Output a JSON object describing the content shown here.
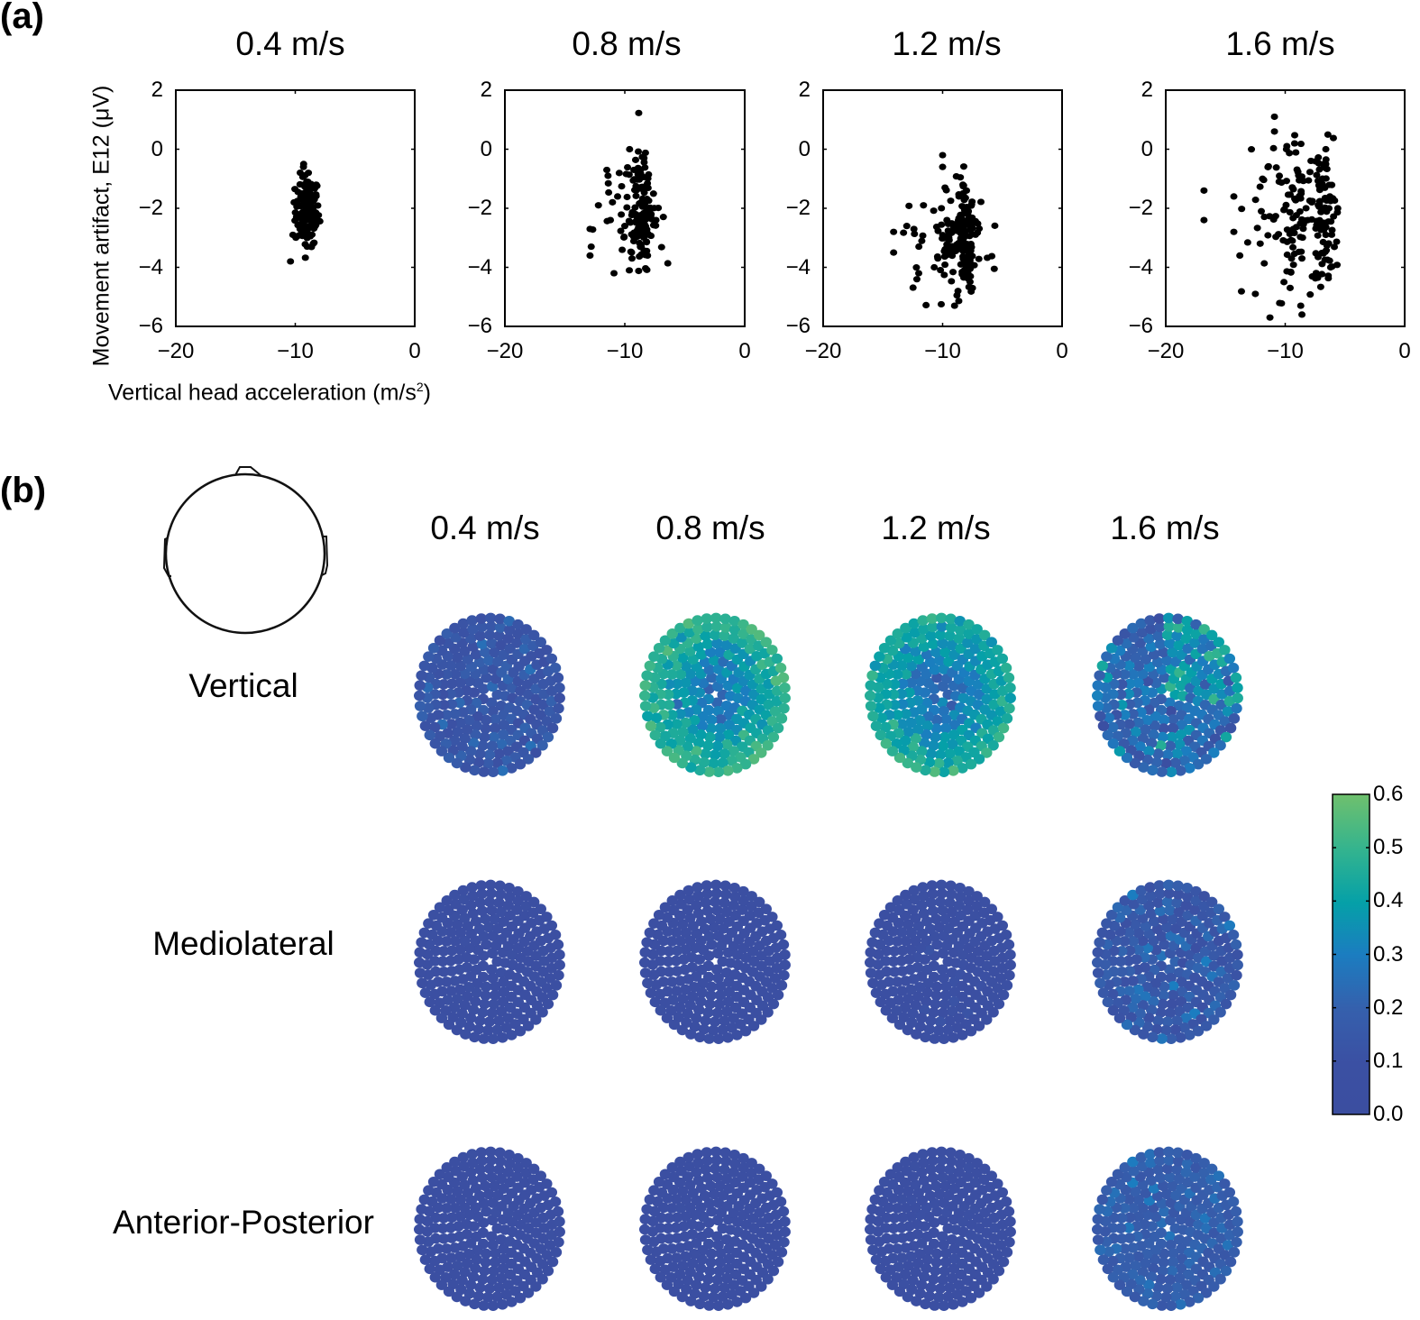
{
  "panel_a": {
    "label": "(a)",
    "ylabel": "Movement artifact, E12 (μV)",
    "xlabel_main": "Vertical head acceleration (m/s",
    "xlabel_sup": "2",
    "xlabel_end": ")"
  },
  "panel_b": {
    "label": "(b)",
    "column_titles": [
      "0.4 m/s",
      "0.8 m/s",
      "1.2 m/s",
      "1.6 m/s"
    ],
    "row_labels": [
      "Vertical",
      "Mediolateral",
      "Anterior-Posterior"
    ],
    "head_icon": "head-outline-icon",
    "colorbar": {
      "ticks": [
        "0.0",
        "0.1",
        "0.2",
        "0.3",
        "0.4",
        "0.5",
        "0.6"
      ],
      "min": 0.0,
      "max": 0.6
    }
  },
  "chart_data": [
    {
      "type": "scatter",
      "title": "0.4 m/s",
      "xlabel": "Vertical head acceleration (m/s²)",
      "ylabel": "Movement artifact, E12 (μV)",
      "xlim": [
        -20,
        0
      ],
      "ylim": [
        -6,
        2
      ],
      "xticks": [
        "−20",
        "−10",
        "0"
      ],
      "yticks": [
        "2",
        "0",
        "−2",
        "−4",
        "−6"
      ],
      "cluster": {
        "x_mean": -9.0,
        "x_sd": 0.5,
        "y_mean": -2.1,
        "y_sd": 0.6,
        "n": 120
      },
      "points": [
        [
          -9.3,
          -0.5
        ],
        [
          -8.9,
          -0.8
        ],
        [
          -9.0,
          -1.2
        ],
        [
          -10.1,
          -1.8
        ],
        [
          -10.2,
          -2.9
        ],
        [
          -10.4,
          -3.8
        ],
        [
          -9.9,
          -2.3
        ],
        [
          -8.4,
          -1.7
        ],
        [
          -8.3,
          -2.4
        ],
        [
          -8.5,
          -3.2
        ],
        [
          -9.0,
          -3.3
        ],
        [
          -9.1,
          -2.0
        ],
        [
          -8.8,
          -2.6
        ],
        [
          -9.5,
          -1.5
        ],
        [
          -8.7,
          -1.9
        ],
        [
          -9.6,
          -2.7
        ]
      ]
    },
    {
      "type": "scatter",
      "title": "0.8 m/s",
      "xlabel": "",
      "ylabel": "",
      "xlim": [
        -20,
        0
      ],
      "ylim": [
        -6,
        2
      ],
      "xticks": [
        "−20",
        "−10",
        "0"
      ],
      "yticks": [
        "2",
        "0",
        "−2",
        "−4",
        "−6"
      ],
      "cluster": {
        "x_mean": -9.2,
        "x_sd": 1.2,
        "y_mean": -2.2,
        "y_sd": 0.9,
        "n": 150
      },
      "points": [
        [
          -9.6,
          0.0
        ],
        [
          -8.4,
          -0.3
        ],
        [
          -11.5,
          -0.7
        ],
        [
          -11.4,
          -0.9
        ],
        [
          -12.2,
          -1.9
        ],
        [
          -12.9,
          -2.7
        ],
        [
          -12.8,
          -3.3
        ],
        [
          -12.9,
          -3.6
        ],
        [
          -10.9,
          -4.2
        ],
        [
          -7.8,
          -2.2
        ],
        [
          -7.4,
          -2.4
        ],
        [
          -9.4,
          -3.7
        ],
        [
          -8.1,
          -3.6
        ],
        [
          -9.0,
          -1.0
        ],
        [
          -8.4,
          -2.5
        ],
        [
          -10.0,
          -2.6
        ],
        [
          -11.2,
          -2.4
        ],
        [
          -10.6,
          -1.6
        ]
      ]
    },
    {
      "type": "scatter",
      "title": "1.2 m/s",
      "xlabel": "",
      "ylabel": "",
      "xlim": [
        -20,
        0
      ],
      "ylim": [
        -6,
        2
      ],
      "xticks": [
        "−20",
        "−10",
        "0"
      ],
      "yticks": [
        "2",
        "0",
        "−2",
        "−4",
        "−6"
      ],
      "cluster": {
        "x_mean": -9.0,
        "x_sd": 1.5,
        "y_mean": -3.1,
        "y_sd": 0.9,
        "n": 180
      },
      "points": [
        [
          -10.0,
          -0.2
        ],
        [
          -10.0,
          -0.6
        ],
        [
          -9.8,
          -1.3
        ],
        [
          -14.1,
          -2.8
        ],
        [
          -14.1,
          -3.5
        ],
        [
          -13.0,
          -2.6
        ],
        [
          -12.0,
          -4.2
        ],
        [
          -9.0,
          -5.3
        ],
        [
          -7.5,
          -4.7
        ],
        [
          -8.0,
          -1.4
        ],
        [
          -7.6,
          -2.5
        ],
        [
          -8.3,
          -3.2
        ],
        [
          -8.0,
          -4.0
        ],
        [
          -11.6,
          -1.9
        ],
        [
          -12.4,
          -2.7
        ],
        [
          -10.4,
          -3.7
        ],
        [
          -10.7,
          -4.0
        ],
        [
          -9.5,
          -2.5
        ]
      ]
    },
    {
      "type": "scatter",
      "title": "1.6 m/s",
      "xlabel": "",
      "ylabel": "",
      "xlim": [
        -20,
        0
      ],
      "ylim": [
        -6,
        2
      ],
      "xticks": [
        "−20",
        "−10",
        "0"
      ],
      "yticks": [
        "2",
        "0",
        "−2",
        "−4",
        "−6"
      ],
      "cluster": {
        "x_mean": -9.5,
        "x_sd": 2.2,
        "y_mean": -2.3,
        "y_sd": 1.3,
        "n": 180
      },
      "points": [
        [
          -10.9,
          1.1
        ],
        [
          -10.9,
          0.6
        ],
        [
          -16.8,
          -1.4
        ],
        [
          -16.8,
          -2.4
        ],
        [
          -14.3,
          -1.6
        ],
        [
          -14.3,
          -2.8
        ],
        [
          -13.8,
          -3.6
        ],
        [
          -12.5,
          -4.9
        ],
        [
          -8.6,
          -5.6
        ],
        [
          -8.7,
          -5.3
        ],
        [
          -6.6,
          0.0
        ],
        [
          -6.6,
          -0.5
        ],
        [
          -5.6,
          -2.0
        ],
        [
          -6.2,
          -4.0
        ],
        [
          -9.9,
          0.0
        ],
        [
          -11.9,
          -1.0
        ],
        [
          -8.1,
          -2.4
        ],
        [
          -6.6,
          -2.9
        ],
        [
          -12.0,
          -2.1
        ],
        [
          -9.4,
          -3.1
        ],
        [
          -8.6,
          -3.7
        ]
      ]
    },
    {
      "type": "heatmap",
      "title": "Topographic maps of correlation per electrode",
      "rows": [
        "Vertical",
        "Mediolateral",
        "Anterior-Posterior"
      ],
      "columns": [
        "0.4 m/s",
        "0.8 m/s",
        "1.2 m/s",
        "1.6 m/s"
      ],
      "colorbar_range": [
        0.0,
        0.6
      ],
      "approx_mean_values": [
        [
          0.1,
          0.38,
          0.34,
          0.26
        ],
        [
          0.05,
          0.05,
          0.06,
          0.1
        ],
        [
          0.05,
          0.05,
          0.05,
          0.14
        ]
      ],
      "approx_max_values": [
        [
          0.25,
          0.55,
          0.55,
          0.5
        ],
        [
          0.1,
          0.08,
          0.12,
          0.3
        ],
        [
          0.08,
          0.08,
          0.1,
          0.3
        ]
      ]
    }
  ]
}
